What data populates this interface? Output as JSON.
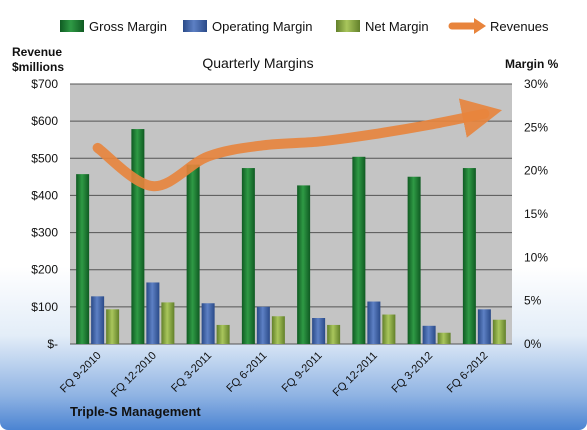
{
  "chart_data": {
    "type": "bar",
    "title": "Quarterly Margins",
    "left_axis_label_line1": "Revenue",
    "left_axis_label_line2": "$millions",
    "right_axis_label": "Margin %",
    "footer": "Triple-S Management",
    "categories": [
      "FQ 9-2010",
      "FQ 12-2010",
      "FQ 3-2011",
      "FQ 6-2011",
      "FQ 9-2011",
      "FQ 12-2011",
      "FQ 3-2012",
      "FQ 6-2012"
    ],
    "series": [
      {
        "name": "Gross Margin",
        "axis": "right",
        "color": "#1e7a32",
        "values": [
          19.6,
          24.8,
          20.7,
          20.3,
          18.3,
          21.6,
          19.3,
          20.3
        ]
      },
      {
        "name": "Operating Margin",
        "axis": "right",
        "color": "#3f63a8",
        "values": [
          5.5,
          7.1,
          4.7,
          4.3,
          3.0,
          4.9,
          2.1,
          4.0
        ]
      },
      {
        "name": "Net Margin",
        "axis": "right",
        "color": "#8cab3f",
        "values": [
          4.0,
          4.8,
          2.2,
          3.2,
          2.2,
          3.4,
          1.3,
          2.8
        ]
      },
      {
        "name": "Revenues",
        "axis": "left",
        "type": "line",
        "color": "#e8843c",
        "values": [
          528,
          425,
          505,
          535,
          545,
          565,
          590,
          620
        ]
      }
    ],
    "left_axis": {
      "min": 0,
      "max": 700,
      "step": 100,
      "tick_labels": [
        "$-",
        "$100",
        "$200",
        "$300",
        "$400",
        "$500",
        "$600",
        "$700"
      ]
    },
    "right_axis": {
      "min": 0,
      "max": 30,
      "step": 5,
      "tick_labels": [
        "0%",
        "5%",
        "10%",
        "15%",
        "20%",
        "25%",
        "30%"
      ]
    },
    "legend_position": "top",
    "grid": true,
    "colors": {
      "plot_bg": "#c4c4c4",
      "grid": "#555555",
      "revenue_line": "#e8843c"
    }
  }
}
